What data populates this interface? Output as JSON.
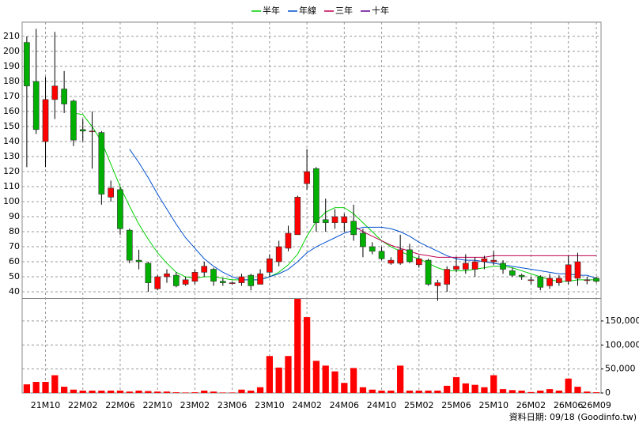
{
  "chart_data": {
    "type": "candlestick",
    "categories": [
      null,
      null,
      "21M10",
      null,
      null,
      null,
      "22M02",
      null,
      null,
      null,
      "22M06",
      null,
      null,
      null,
      "22M10",
      null,
      null,
      null,
      "23M02",
      null,
      null,
      null,
      "23M06",
      null,
      null,
      null,
      "23M10",
      null,
      null,
      null,
      "24M02",
      null,
      null,
      null,
      "24M06",
      null,
      null,
      null,
      "24M10",
      null,
      null,
      null,
      "25M02",
      null,
      null,
      null,
      "25M06",
      null,
      null,
      null,
      "25M10",
      null,
      null,
      null,
      "26M02",
      null,
      null,
      null,
      "26M06",
      null,
      null,
      "26M09"
    ],
    "open": [
      206,
      180,
      140,
      168,
      175,
      167,
      148,
      147,
      146,
      103,
      108,
      81,
      61,
      59,
      42,
      50,
      51,
      45,
      47,
      53,
      55,
      47,
      46,
      46,
      51,
      45,
      53,
      60,
      69,
      78,
      112,
      122,
      88,
      86,
      86,
      87,
      79,
      70,
      67,
      59,
      59,
      68,
      58,
      61,
      44,
      45,
      55,
      55,
      55,
      60,
      60,
      59,
      54,
      51,
      48,
      50,
      44,
      46,
      47,
      49,
      48,
      49
    ],
    "high": [
      210,
      215,
      183,
      213,
      187,
      168,
      155,
      160,
      147,
      114,
      110,
      82,
      68,
      60,
      51,
      55,
      53,
      50,
      55,
      60,
      56,
      49,
      47,
      52,
      52,
      55,
      65,
      74,
      84,
      104,
      135,
      123,
      102,
      95,
      92,
      98,
      82,
      73,
      70,
      63,
      78,
      72,
      64,
      62,
      48,
      57,
      63,
      65,
      63,
      64,
      67,
      61,
      56,
      52,
      50,
      51,
      52,
      51,
      64,
      66,
      50,
      50
    ],
    "low": [
      123,
      145,
      123,
      155,
      159,
      137,
      140,
      122,
      98,
      100,
      78,
      59,
      55,
      40,
      41,
      46,
      43,
      44,
      45,
      50,
      44,
      44,
      45,
      44,
      41,
      45,
      50,
      57,
      67,
      78,
      108,
      80,
      80,
      82,
      80,
      74,
      63,
      65,
      61,
      58,
      58,
      59,
      56,
      44,
      34,
      40,
      53,
      52,
      50,
      55,
      58,
      52,
      50,
      48,
      45,
      41,
      42,
      44,
      45,
      44,
      45,
      46
    ],
    "close": [
      177,
      148,
      168,
      177,
      165,
      141,
      147,
      147,
      105,
      109,
      82,
      61,
      60,
      46,
      50,
      52,
      44,
      48,
      53,
      57,
      47,
      46,
      46,
      50,
      44,
      52,
      62,
      70,
      79,
      103,
      120,
      86,
      86,
      90,
      90,
      78,
      70,
      67,
      62,
      61,
      68,
      60,
      62,
      45,
      46,
      55,
      57,
      59,
      60,
      62,
      61,
      55,
      51,
      50,
      48,
      43,
      49,
      49,
      58,
      60,
      48,
      47
    ],
    "up_color": "#ff0000",
    "down_color": "#00b000",
    "ylim": [
      35.8,
      219.5
    ],
    "yticks": [
      40,
      50,
      60,
      70,
      80,
      90,
      100,
      110,
      120,
      130,
      140,
      150,
      160,
      170,
      180,
      190,
      200,
      210
    ],
    "grid": true,
    "legend": "top",
    "series": [
      {
        "name": "半年",
        "color": "#00d000",
        "values": [
          null,
          null,
          null,
          null,
          null,
          159,
          158,
          150,
          140,
          125,
          110,
          97,
          85,
          75,
          66,
          59,
          53,
          50,
          49,
          50,
          50,
          49,
          48,
          48,
          48,
          48,
          50,
          53,
          58,
          65,
          77,
          87,
          93,
          96,
          96,
          92,
          86,
          80,
          74,
          70,
          67,
          64,
          62,
          59,
          56,
          54,
          54,
          54,
          55,
          56,
          57,
          57,
          56,
          54,
          52,
          50,
          48,
          47,
          47,
          48,
          48,
          48
        ]
      },
      {
        "name": "年線",
        "color": "#0050d0",
        "values": [
          null,
          null,
          null,
          null,
          null,
          null,
          null,
          null,
          null,
          null,
          null,
          135,
          126,
          116,
          105,
          95,
          85,
          76,
          69,
          62,
          57,
          53,
          50,
          48,
          48,
          48,
          50,
          52,
          55,
          60,
          66,
          70,
          73,
          76,
          79,
          81,
          83,
          83,
          83,
          82,
          80,
          77,
          73,
          70,
          67,
          64,
          62,
          61,
          61,
          60,
          59,
          58,
          57,
          56,
          55,
          54,
          53,
          52,
          52,
          51,
          51,
          49
        ]
      },
      {
        "name": "三年",
        "color": "#c00050",
        "values": [
          null,
          null,
          null,
          null,
          null,
          null,
          null,
          null,
          null,
          null,
          null,
          null,
          null,
          null,
          null,
          null,
          null,
          null,
          null,
          null,
          null,
          null,
          null,
          null,
          null,
          null,
          null,
          null,
          null,
          null,
          null,
          null,
          null,
          null,
          null,
          84,
          80,
          77,
          74,
          71,
          69,
          67,
          65,
          64,
          63,
          63,
          63,
          63,
          63,
          63,
          64,
          64,
          64,
          64,
          64,
          64,
          64,
          64,
          64,
          64,
          64,
          64
        ]
      },
      {
        "name": "十年",
        "color": "#600090",
        "values": [
          null,
          null,
          null,
          null,
          null,
          null,
          null,
          null,
          null,
          null,
          null,
          null,
          null,
          null,
          null,
          null,
          null,
          null,
          null,
          null,
          null,
          null,
          null,
          null,
          null,
          null,
          null,
          null,
          null,
          null,
          null,
          null,
          null,
          null,
          null,
          null,
          null,
          null,
          null,
          null,
          null,
          null,
          null,
          null,
          null,
          null,
          null,
          null,
          null,
          null,
          null,
          null,
          null,
          null,
          null,
          null,
          null,
          null,
          null,
          null,
          null,
          null
        ]
      }
    ],
    "volume": {
      "color": "#ff0000",
      "values": [
        18000,
        23000,
        23000,
        37000,
        13000,
        7000,
        5000,
        5000,
        5000,
        5000,
        5000,
        3000,
        5000,
        4000,
        3000,
        3000,
        1500,
        1000,
        1500,
        5000,
        3000,
        1000,
        1000,
        7000,
        5000,
        12000,
        77000,
        53000,
        77000,
        196000,
        158000,
        67000,
        57000,
        45000,
        21000,
        52000,
        12000,
        7000,
        5000,
        5000,
        57000,
        5000,
        5000,
        5000,
        5000,
        15000,
        33000,
        20000,
        17000,
        12000,
        37000,
        8000,
        6000,
        5000,
        2000,
        5000,
        8000,
        5000,
        30000,
        13000,
        3000,
        1500
      ],
      "ylim": [
        0,
        196000
      ],
      "yticks": [
        0,
        {
          "value": 50000,
          "label": "50,000"
        },
        {
          "value": 100000,
          "label": "100,000"
        },
        {
          "value": 150000,
          "label": "150,000"
        }
      ]
    },
    "footer": "資料日期: 09/18  (Goodinfo.tw)"
  }
}
